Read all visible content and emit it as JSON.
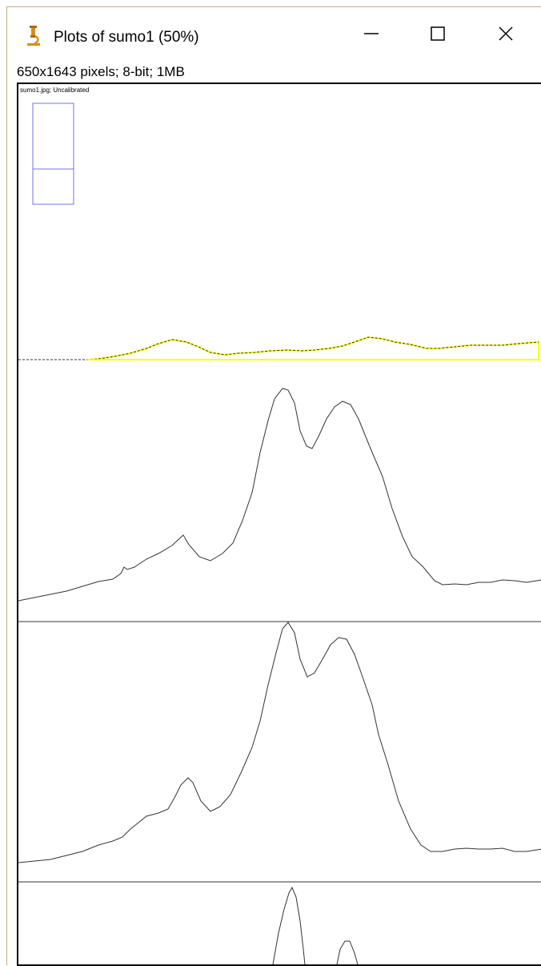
{
  "window": {
    "title": "Plots of sumo1 (50%)",
    "icon": "microscope-icon",
    "controls": [
      "minimize",
      "maximize",
      "close"
    ]
  },
  "image_info": "650x1643 pixels; 8-bit; 1MB",
  "canvas": {
    "overlay_label": "sumo1.jpg; Uncalibrated",
    "selection_color": "#7070ee",
    "profile_fill_color": "#ffff00",
    "plot_line_color": "#333333"
  }
}
